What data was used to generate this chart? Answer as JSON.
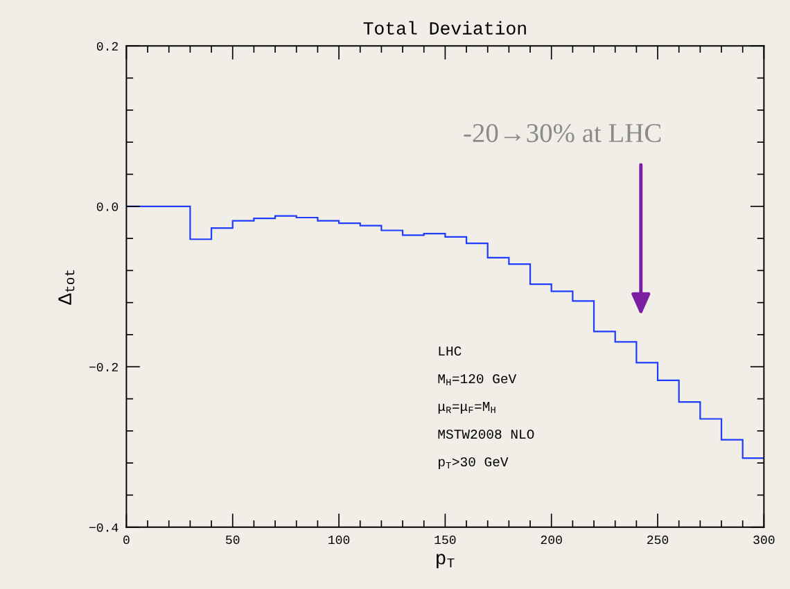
{
  "chart_data": {
    "type": "histogram",
    "title": "Total Deviation",
    "xlabel": "p$_{T}$",
    "ylabel": "Δ$_{tot}$",
    "bins": [
      0,
      10,
      20,
      30,
      40,
      50,
      60,
      70,
      80,
      90,
      100,
      110,
      120,
      130,
      140,
      150,
      160,
      170,
      180,
      190,
      200,
      210,
      220,
      230,
      240,
      250,
      260,
      270,
      280,
      290,
      300
    ],
    "values": [
      0,
      0,
      0,
      -0.041,
      -0.027,
      -0.018,
      -0.015,
      -0.012,
      -0.014,
      -0.018,
      -0.021,
      -0.024,
      -0.03,
      -0.036,
      -0.034,
      -0.038,
      -0.046,
      -0.064,
      -0.072,
      -0.097,
      -0.106,
      -0.118,
      -0.156,
      -0.169,
      -0.195,
      -0.217,
      -0.244,
      -0.265,
      -0.291,
      -0.314
    ],
    "color": "#1f3cff",
    "xlim": [
      0,
      300
    ],
    "ylim": [
      -0.4,
      0.2
    ],
    "xticks": [
      0,
      {
        "value": 10,
        "label": null
      },
      {
        "value": 20,
        "label": null
      },
      {
        "value": 30,
        "label": null
      },
      {
        "value": 40,
        "label": null
      },
      50,
      {
        "value": 60,
        "label": null
      },
      {
        "value": 70,
        "label": null
      },
      {
        "value": 80,
        "label": null
      },
      {
        "value": 90,
        "label": null
      },
      100,
      {
        "value": 110,
        "label": null
      },
      {
        "value": 120,
        "label": null
      },
      {
        "value": 130,
        "label": null
      },
      {
        "value": 140,
        "label": null
      },
      150,
      {
        "value": 160,
        "label": null
      },
      {
        "value": 170,
        "label": null
      },
      {
        "value": 180,
        "label": null
      },
      {
        "value": 190,
        "label": null
      },
      200,
      {
        "value": 210,
        "label": null
      },
      {
        "value": 220,
        "label": null
      },
      {
        "value": 230,
        "label": null
      },
      {
        "value": 240,
        "label": null
      },
      250,
      {
        "value": 260,
        "label": null
      },
      {
        "value": 270,
        "label": null
      },
      {
        "value": 280,
        "label": null
      },
      {
        "value": 290,
        "label": null
      },
      300
    ],
    "yticks": [
      {
        "value": -0.4,
        "label": "−0.4"
      },
      {
        "value": -0.36,
        "label": null
      },
      {
        "value": -0.32,
        "label": null
      },
      {
        "value": -0.28,
        "label": null
      },
      {
        "value": -0.24,
        "label": null
      },
      {
        "value": -0.2,
        "label": "−0.2"
      },
      {
        "value": -0.16,
        "label": null
      },
      {
        "value": -0.12,
        "label": null
      },
      {
        "value": -0.08,
        "label": null
      },
      {
        "value": -0.04,
        "label": null
      },
      {
        "value": 0,
        "label": "0.0"
      },
      {
        "value": 0.04,
        "label": null
      },
      {
        "value": 0.08,
        "label": null
      },
      {
        "value": 0.12,
        "label": null
      },
      {
        "value": 0.16,
        "label": null
      },
      {
        "value": 0.2,
        "label": "0.2"
      }
    ],
    "annotations": [
      "-20→30% at LHC",
      "LHC",
      "M$_{H}$=120 GeV",
      "μ$_{R}$=μ$_{F}$=M$_{H}$",
      "MSTW2008 NLO",
      "p$_{T}$>30 GeV"
    ]
  }
}
